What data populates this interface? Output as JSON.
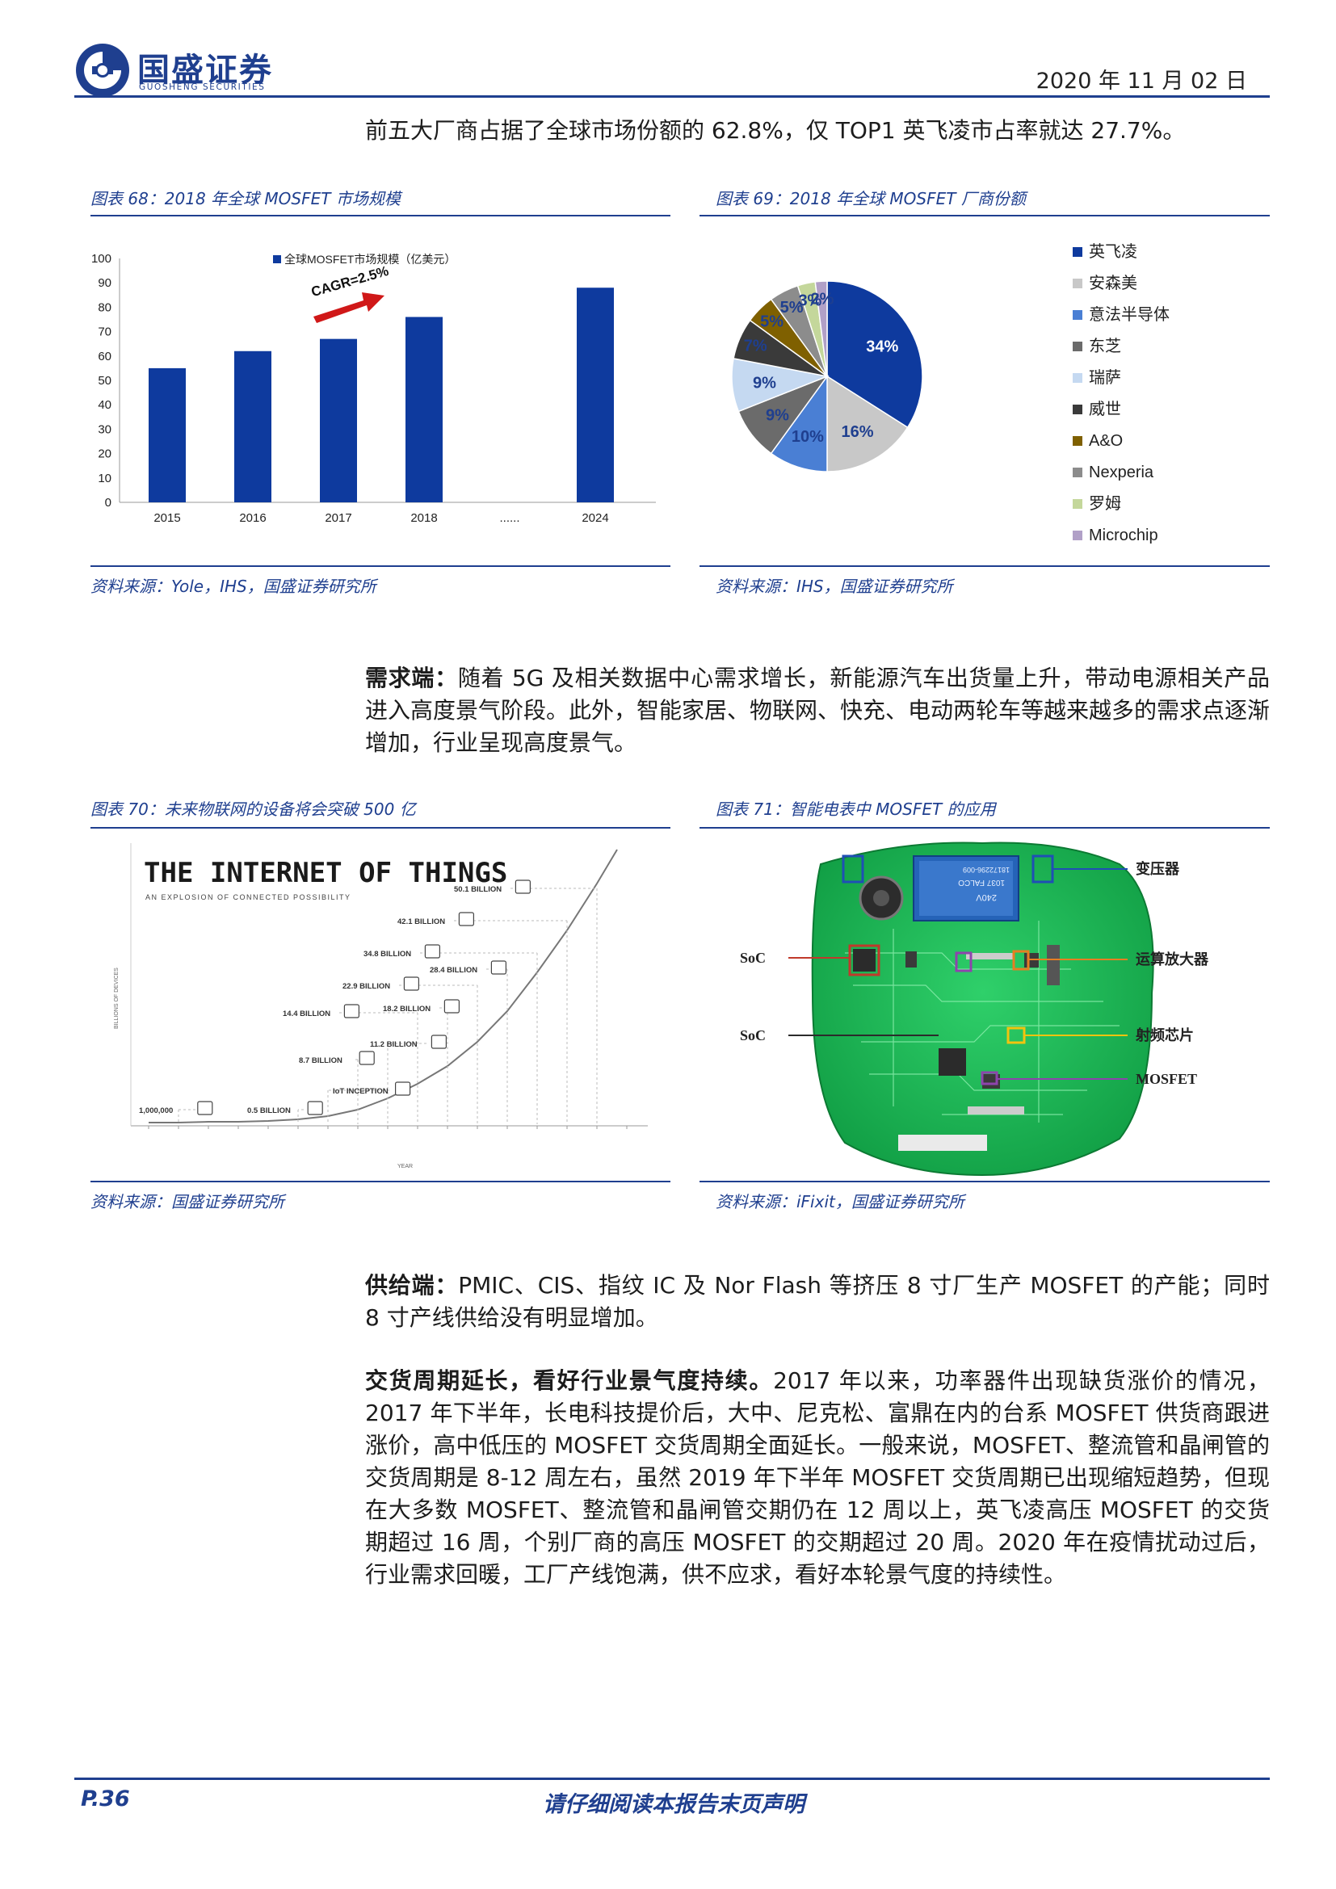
{
  "header": {
    "logo_cn": "国盛证券",
    "logo_en": "GUOSHENG SECURITIES",
    "date": "2020 年 11 月 02 日"
  },
  "intro_text": "前五大厂商占据了全球市场份额的 62.8%，仅 TOP1 英飞凌市占率就达 27.7%。",
  "fig68": {
    "caption": "图表 68：2018 年全球 MOSFET 市场规模",
    "source": "资料来源：Yole，IHS，国盛证券研究所"
  },
  "fig69": {
    "caption": "图表 69：2018 年全球 MOSFET 厂商份额",
    "source": "资料来源：IHS，国盛证券研究所"
  },
  "fig70": {
    "caption": "图表 70：未来物联网的设备将会突破 500 亿",
    "source": "资料来源：国盛证券研究所",
    "title": "THE INTERNET OF THINGS",
    "subtitle": "AN EXPLOSION OF CONNECTED POSSIBILITY",
    "ylabel": "BILLIONS OF DEVICES",
    "xlabel": "YEAR",
    "labels": [
      "50.1 BILLION",
      "42.1 BILLION",
      "34.8 BILLION",
      "28.4 BILLION",
      "22.9 BILLION",
      "18.2 BILLION",
      "14.4 BILLION",
      "11.2 BILLION",
      "8.7 BILLION",
      "IoT INCEPTION",
      "1,000,000",
      "0.5 BILLION"
    ]
  },
  "fig71": {
    "caption": "图表 71：智能电表中 MOSFET 的应用",
    "source": "资料来源：iFixit，国盛证券研究所",
    "labels": {
      "transformer": "变压器",
      "soc1": "SoC",
      "opamp": "运算放大器",
      "soc2": "SoC",
      "rf": "射频芯片",
      "mosfet": "MOSFET"
    },
    "transformer_text": [
      "240V",
      "1037 FALCO",
      "18172296-009"
    ]
  },
  "demand_label": "需求端：",
  "demand_text": "随着 5G 及相关数据中心需求增长，新能源汽车出货量上升，带动电源相关产品进入高度景气阶段。此外，智能家居、物联网、快充、电动两轮车等越来越多的需求点逐渐增加，行业呈现高度景气。",
  "supply_label": "供给端：",
  "supply_text": "PMIC、CIS、指纹 IC 及 Nor Flash 等挤压 8 寸厂生产 MOSFET 的产能；同时 8 寸产线供给没有明显增加。",
  "delivery_label": "交货周期延长，看好行业景气度持续。",
  "delivery_text": "2017 年以来，功率器件出现缺货涨价的情况，2017 年下半年，长电科技提价后，大中、尼克松、富鼎在内的台系 MOSFET 供货商跟进涨价，高中低压的 MOSFET 交货周期全面延长。一般来说，MOSFET、整流管和晶闸管的交货周期是 8-12 周左右，虽然 2019 年下半年 MOSFET 交货周期已出现缩短趋势，但现在大多数 MOSFET、整流管和晶闸管交期仍在 12 周以上，英飞凌高压 MOSFET 的交货期超过 16 周，个别厂商的高压 MOSFET 的交期超过 20 周。2020 年在疫情扰动过后，行业需求回暖，工厂产线饱满，供不应求，看好本轮景气度的持续性。",
  "footer": {
    "page": "P.36",
    "disclaimer": "请仔细阅读本报告末页声明"
  },
  "chart_data": [
    {
      "type": "bar",
      "legend": "全球MOSFET市场规模（亿美元）",
      "categories": [
        "2015",
        "2016",
        "2017",
        "2018",
        "......",
        "2024"
      ],
      "values": [
        55,
        62,
        67,
        76,
        null,
        88
      ],
      "ylim": [
        0,
        100
      ],
      "yticks": [
        "0",
        "10",
        "20",
        "30",
        "40",
        "50",
        "60",
        "70",
        "80",
        "90",
        "100"
      ],
      "annotation": "CAGR=2.5%",
      "color": "#0e3a9e"
    },
    {
      "type": "pie",
      "labels": [
        "英飞凌",
        "安森美",
        "意法半导体",
        "东芝",
        "瑞萨",
        "威世",
        "A&O",
        "Nexperia",
        "罗姆",
        "Microchip"
      ],
      "values": [
        34,
        16,
        10,
        9,
        9,
        7,
        5,
        5,
        3,
        2
      ],
      "value_labels": [
        "34%",
        "16%",
        "10%",
        "9%",
        "9%",
        "7%",
        "5%",
        "5%",
        "3%",
        "2%"
      ],
      "colors": [
        "#0e3a9e",
        "#c8c8c8",
        "#4a7fd4",
        "#6b6b6b",
        "#c5d9f1",
        "#3a3a3a",
        "#7f6000",
        "#8c8c8c",
        "#c4d79b",
        "#b1a0c7"
      ]
    }
  ]
}
